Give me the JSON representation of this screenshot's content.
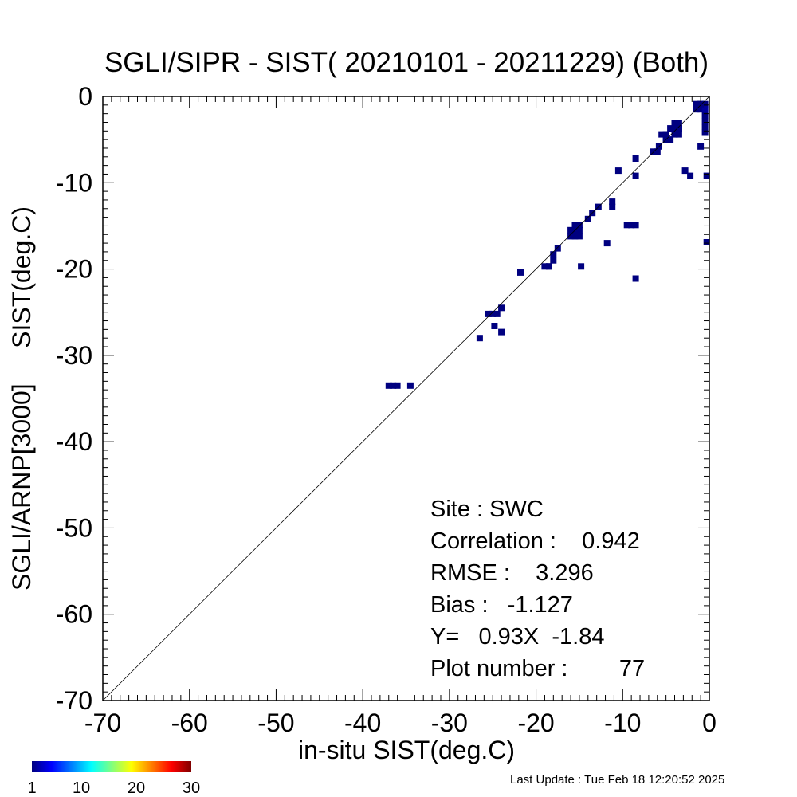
{
  "chart_data": {
    "type": "heatmap",
    "title": "SGLI/SIPR - SIST( 20210101 - 20211229) (Both)",
    "xlabel": "in-situ SIST(deg.C)",
    "ylabel": "SGLI/ARNP[3000]     SIST(deg.C)",
    "xlim": [
      -70,
      0
    ],
    "ylim": [
      -70,
      0
    ],
    "x_ticks": [
      "-70",
      "-60",
      "-50",
      "-40",
      "-30",
      "-20",
      "-10",
      "0"
    ],
    "y_ticks": [
      "-70",
      "-60",
      "-50",
      "-40",
      "-30",
      "-20",
      "-10",
      "0"
    ],
    "identity_line": true,
    "stats": {
      "site": "Site : SWC",
      "correlation": "Correlation :    0.942",
      "rmse": "RMSE :    3.296",
      "bias": "Bias :   -1.127",
      "fit": "Y=   0.93X  -1.84",
      "plot_number": "Plot number :        77"
    },
    "colorbar": {
      "min": 1,
      "max": 30,
      "ticks": [
        "1",
        "10",
        "20",
        "30"
      ],
      "colormap": "jet"
    },
    "cells": [
      {
        "x": -37.0,
        "y": -33.5,
        "count": 1
      },
      {
        "x": -36.5,
        "y": -33.5,
        "count": 1
      },
      {
        "x": -36.0,
        "y": -33.5,
        "count": 1
      },
      {
        "x": -34.5,
        "y": -33.5,
        "count": 1
      },
      {
        "x": -26.5,
        "y": -28.0,
        "count": 1
      },
      {
        "x": -25.5,
        "y": -25.2,
        "count": 1
      },
      {
        "x": -25.0,
        "y": -25.2,
        "count": 1
      },
      {
        "x": -24.5,
        "y": -25.2,
        "count": 1
      },
      {
        "x": -24.0,
        "y": -24.5,
        "count": 1
      },
      {
        "x": -24.8,
        "y": -26.6,
        "count": 1
      },
      {
        "x": -24.0,
        "y": -27.3,
        "count": 1
      },
      {
        "x": -21.8,
        "y": -20.4,
        "count": 1
      },
      {
        "x": -19.0,
        "y": -19.7,
        "count": 1
      },
      {
        "x": -18.5,
        "y": -19.7,
        "count": 1
      },
      {
        "x": -18.0,
        "y": -19.0,
        "count": 1
      },
      {
        "x": -18.0,
        "y": -18.3,
        "count": 1
      },
      {
        "x": -17.5,
        "y": -17.6,
        "count": 1
      },
      {
        "x": -16.0,
        "y": -16.2,
        "count": 1
      },
      {
        "x": -15.5,
        "y": -16.2,
        "count": 1
      },
      {
        "x": -15.0,
        "y": -16.2,
        "count": 1
      },
      {
        "x": -16.0,
        "y": -15.5,
        "count": 1
      },
      {
        "x": -15.5,
        "y": -15.5,
        "count": 1
      },
      {
        "x": -15.0,
        "y": -15.5,
        "count": 1
      },
      {
        "x": -15.5,
        "y": -14.9,
        "count": 1
      },
      {
        "x": -15.0,
        "y": -14.9,
        "count": 1
      },
      {
        "x": -14.8,
        "y": -19.7,
        "count": 1
      },
      {
        "x": -14.0,
        "y": -14.2,
        "count": 1
      },
      {
        "x": -13.5,
        "y": -13.5,
        "count": 1
      },
      {
        "x": -12.8,
        "y": -12.8,
        "count": 1
      },
      {
        "x": -11.8,
        "y": -17.0,
        "count": 1
      },
      {
        "x": -11.2,
        "y": -12.2,
        "count": 1
      },
      {
        "x": -11.2,
        "y": -12.8,
        "count": 1
      },
      {
        "x": -9.5,
        "y": -14.9,
        "count": 1
      },
      {
        "x": -9.0,
        "y": -14.9,
        "count": 1
      },
      {
        "x": -8.5,
        "y": -14.9,
        "count": 1
      },
      {
        "x": -8.5,
        "y": -21.1,
        "count": 1
      },
      {
        "x": -8.5,
        "y": -9.2,
        "count": 1
      },
      {
        "x": -8.5,
        "y": -7.2,
        "count": 1
      },
      {
        "x": -10.5,
        "y": -8.6,
        "count": 1
      },
      {
        "x": -6.5,
        "y": -6.4,
        "count": 1
      },
      {
        "x": -6.0,
        "y": -6.4,
        "count": 1
      },
      {
        "x": -5.8,
        "y": -5.8,
        "count": 1
      },
      {
        "x": -5.5,
        "y": -4.4,
        "count": 1
      },
      {
        "x": -5.0,
        "y": -4.4,
        "count": 1
      },
      {
        "x": -5.0,
        "y": -5.0,
        "count": 1
      },
      {
        "x": -4.5,
        "y": -5.0,
        "count": 1
      },
      {
        "x": -4.5,
        "y": -3.7,
        "count": 1
      },
      {
        "x": -4.0,
        "y": -3.7,
        "count": 1
      },
      {
        "x": -3.5,
        "y": -3.7,
        "count": 1
      },
      {
        "x": -4.0,
        "y": -3.1,
        "count": 1
      },
      {
        "x": -3.5,
        "y": -3.1,
        "count": 1
      },
      {
        "x": -4.0,
        "y": -4.4,
        "count": 1
      },
      {
        "x": -3.5,
        "y": -4.4,
        "count": 1
      },
      {
        "x": -1.0,
        "y": -5.8,
        "count": 1
      },
      {
        "x": -2.8,
        "y": -8.6,
        "count": 1
      },
      {
        "x": -2.2,
        "y": -9.2,
        "count": 1
      },
      {
        "x": -0.3,
        "y": -9.2,
        "count": 1
      },
      {
        "x": -0.3,
        "y": -16.9,
        "count": 1
      },
      {
        "x": -1.5,
        "y": -0.9,
        "count": 1
      },
      {
        "x": -1.0,
        "y": -0.9,
        "count": 1
      },
      {
        "x": -0.5,
        "y": -0.9,
        "count": 1
      },
      {
        "x": -1.5,
        "y": -1.5,
        "count": 1
      },
      {
        "x": -1.0,
        "y": -1.5,
        "count": 1
      },
      {
        "x": -0.5,
        "y": -1.5,
        "count": 1
      },
      {
        "x": -0.5,
        "y": -2.2,
        "count": 1
      },
      {
        "x": -0.5,
        "y": -2.9,
        "count": 1
      },
      {
        "x": -0.5,
        "y": -3.5,
        "count": 1
      },
      {
        "x": -0.5,
        "y": -4.2,
        "count": 1
      },
      {
        "x": -0.5,
        "y": -1.5,
        "count": 2
      },
      {
        "x": -1.0,
        "y": -0.9,
        "count": 1
      },
      {
        "x": -5.0,
        "y": -4.4,
        "count": 1
      },
      {
        "x": -4.0,
        "y": -3.7,
        "count": 1
      },
      {
        "x": -15.5,
        "y": -16.2,
        "count": 1
      },
      {
        "x": -18.5,
        "y": -19.7,
        "count": 1
      },
      {
        "x": -3.5,
        "y": -3.7,
        "count": 1
      }
    ]
  },
  "footer": {
    "last_update": "Last Update : Tue Feb 18 12:20:52 2025"
  }
}
